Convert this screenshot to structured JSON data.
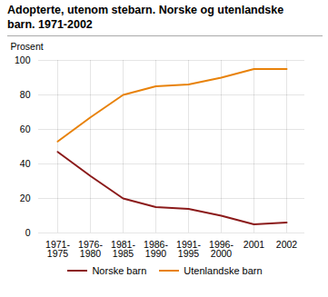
{
  "chart_data": {
    "type": "line",
    "title": "Adopterte, utenom stebarn. Norske og utenlandske\nbarn. 1971-2002",
    "y_label": "Prosent",
    "categories": [
      "1971-\n1975",
      "1976-\n1980",
      "1981-\n1985",
      "1986-\n1990",
      "1991-\n1995",
      "1996-\n2000",
      "2001",
      "2002"
    ],
    "series": [
      {
        "name": "Norske barn",
        "color": "#8B1A1A",
        "values": [
          47,
          33,
          20,
          15,
          14,
          10,
          5,
          6
        ]
      },
      {
        "name": "Utenlandske barn",
        "color": "#E8820A",
        "values": [
          53,
          67,
          80,
          85,
          86,
          90,
          95,
          95
        ]
      }
    ],
    "ylim": [
      0,
      100
    ],
    "yticks": [
      0,
      20,
      40,
      60,
      80,
      100
    ],
    "grid": true,
    "legend": "bottom"
  }
}
